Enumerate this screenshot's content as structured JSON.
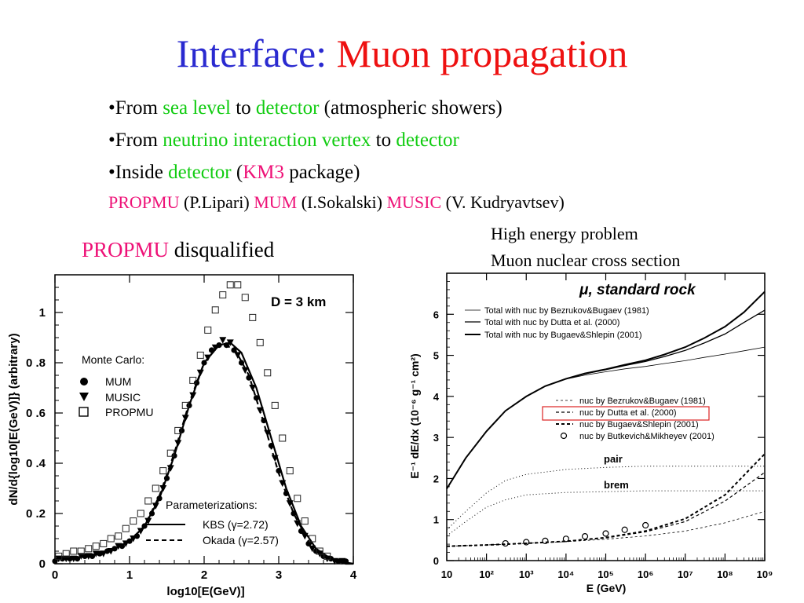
{
  "slide": {
    "title_part1": "Interface:",
    "title_part2": "Muon propagation",
    "bullets": [
      {
        "a": "•From ",
        "b": "sea level",
        "c": " to ",
        "d": "detector",
        "e": " (atmospheric showers)"
      },
      {
        "a": "•From ",
        "b": "neutrino interaction vertex",
        "c": " to ",
        "d": "detector",
        "e": ""
      },
      {
        "a": "•Inside ",
        "b": "detector",
        "c": " (",
        "d": "KM3",
        "e": " package)"
      }
    ],
    "credits": [
      {
        "code": "PROPMU",
        "who": " (P.Lipari) "
      },
      {
        "code": "MUM",
        "who": " (I.Sokalski) "
      },
      {
        "code": "MUSIC",
        "who": " (V. Kudryavtsev)"
      }
    ],
    "disqualified": {
      "code": "PROPMU",
      "text": " disqualified"
    },
    "notes": [
      "High energy problem",
      "Muon nuclear cross section"
    ],
    "colors": {
      "title_blue": "#2a2ad0",
      "red": "#ee1111",
      "green": "#11cc11",
      "magenta": "#ee1177",
      "highlight_box": "#dd2222"
    }
  },
  "chart_data": [
    {
      "type": "scatter",
      "annotation": "D = 3 km",
      "xlabel": "log10[E(GeV)]",
      "ylabel": "dN/d{log10[E(GeV)]} (arbitrary)",
      "xlim": [
        0,
        4
      ],
      "ylim": [
        0,
        1.15
      ],
      "x_ticks": [
        "0",
        "1",
        "2",
        "3",
        "4"
      ],
      "y_ticks": [
        "0",
        "0.2",
        "0.4",
        "0.6",
        "0.8",
        "1"
      ],
      "legend_mc_title": "Monte Carlo:",
      "legend_param_title": "Parameterizations:",
      "series": [
        {
          "name": "MUM",
          "marker": "filled-circle",
          "x": [
            0.0,
            0.1,
            0.2,
            0.3,
            0.4,
            0.5,
            0.6,
            0.7,
            0.8,
            0.9,
            1.0,
            1.1,
            1.2,
            1.3,
            1.4,
            1.5,
            1.6,
            1.7,
            1.8,
            1.9,
            2.0,
            2.1,
            2.2,
            2.3,
            2.4,
            2.5,
            2.6,
            2.7,
            2.8,
            2.9,
            3.0,
            3.1,
            3.2,
            3.3,
            3.4,
            3.5,
            3.6,
            3.7,
            3.8,
            3.9
          ],
          "y": [
            0.01,
            0.02,
            0.02,
            0.02,
            0.03,
            0.03,
            0.04,
            0.05,
            0.06,
            0.07,
            0.09,
            0.11,
            0.15,
            0.2,
            0.26,
            0.34,
            0.43,
            0.53,
            0.63,
            0.72,
            0.8,
            0.85,
            0.87,
            0.87,
            0.85,
            0.8,
            0.74,
            0.66,
            0.57,
            0.47,
            0.37,
            0.28,
            0.2,
            0.13,
            0.08,
            0.05,
            0.03,
            0.02,
            0.01,
            0.01
          ]
        },
        {
          "name": "MUSIC",
          "marker": "filled-triangle",
          "x": [
            0.05,
            0.15,
            0.25,
            0.35,
            0.45,
            0.55,
            0.65,
            0.75,
            0.85,
            0.95,
            1.05,
            1.15,
            1.25,
            1.35,
            1.45,
            1.55,
            1.65,
            1.75,
            1.85,
            1.95,
            2.05,
            2.15,
            2.25,
            2.35,
            2.45,
            2.55,
            2.65,
            2.75,
            2.85,
            2.95,
            3.05,
            3.15,
            3.25,
            3.35,
            3.45,
            3.55,
            3.65,
            3.75,
            3.85
          ],
          "y": [
            0.02,
            0.02,
            0.02,
            0.03,
            0.03,
            0.04,
            0.04,
            0.05,
            0.07,
            0.08,
            0.1,
            0.13,
            0.17,
            0.23,
            0.3,
            0.38,
            0.48,
            0.58,
            0.67,
            0.76,
            0.82,
            0.86,
            0.89,
            0.88,
            0.83,
            0.77,
            0.7,
            0.61,
            0.52,
            0.42,
            0.32,
            0.24,
            0.16,
            0.11,
            0.06,
            0.04,
            0.02,
            0.01,
            0.01
          ]
        },
        {
          "name": "PROPMU",
          "marker": "open-square",
          "x": [
            0.05,
            0.15,
            0.25,
            0.35,
            0.45,
            0.55,
            0.65,
            0.75,
            0.85,
            0.95,
            1.05,
            1.15,
            1.25,
            1.35,
            1.45,
            1.55,
            1.65,
            1.75,
            1.85,
            1.95,
            2.05,
            2.15,
            2.25,
            2.35,
            2.45,
            2.55,
            2.65,
            2.75,
            2.85,
            2.95,
            3.05,
            3.15,
            3.25,
            3.35,
            3.45,
            3.55,
            3.65
          ],
          "y": [
            0.03,
            0.04,
            0.05,
            0.05,
            0.06,
            0.07,
            0.08,
            0.1,
            0.11,
            0.14,
            0.17,
            0.2,
            0.25,
            0.3,
            0.37,
            0.44,
            0.53,
            0.63,
            0.73,
            0.83,
            0.93,
            1.01,
            1.07,
            1.11,
            1.11,
            1.06,
            0.98,
            0.88,
            0.76,
            0.63,
            0.5,
            0.37,
            0.26,
            0.17,
            0.1,
            0.05,
            0.03
          ]
        },
        {
          "name": "KBS (γ=2.72)",
          "style": "solid",
          "x": [
            0.0,
            0.2,
            0.4,
            0.6,
            0.8,
            1.0,
            1.2,
            1.4,
            1.6,
            1.8,
            2.0,
            2.2,
            2.35,
            2.5,
            2.7,
            2.9,
            3.1,
            3.3,
            3.5,
            3.7,
            3.9,
            4.0
          ],
          "y": [
            0.02,
            0.02,
            0.03,
            0.04,
            0.06,
            0.09,
            0.15,
            0.26,
            0.43,
            0.63,
            0.8,
            0.87,
            0.88,
            0.84,
            0.7,
            0.5,
            0.3,
            0.15,
            0.06,
            0.02,
            0.0,
            0.0
          ]
        },
        {
          "name": "Okada (γ=2.57)",
          "style": "dashed",
          "x": [
            0.0,
            0.2,
            0.4,
            0.6,
            0.8,
            1.0,
            1.2,
            1.4,
            1.6,
            1.8,
            2.0,
            2.2,
            2.4,
            2.6,
            2.8,
            3.0,
            3.2,
            3.4,
            3.6,
            3.8,
            4.0
          ],
          "y": [
            0.02,
            0.02,
            0.03,
            0.04,
            0.06,
            0.09,
            0.15,
            0.27,
            0.44,
            0.64,
            0.8,
            0.87,
            0.86,
            0.75,
            0.56,
            0.36,
            0.2,
            0.09,
            0.03,
            0.01,
            0.0
          ]
        }
      ]
    },
    {
      "type": "line",
      "title": "μ, standard rock",
      "xlabel": "E (GeV)",
      "ylabel": "E⁻¹ dE/dx (10⁻⁶ g⁻¹ cm²)",
      "xscale": "log",
      "xlim": [
        10,
        1000000000
      ],
      "ylim": [
        0,
        7
      ],
      "x_ticks": [
        "10",
        "10²",
        "10³",
        "10⁴",
        "10⁵",
        "10⁶",
        "10⁷",
        "10⁸",
        "10⁹"
      ],
      "y_ticks": [
        "0",
        "1",
        "2",
        "3",
        "4",
        "5",
        "6"
      ],
      "series": [
        {
          "name": "Total with nuc by Bezrukov&Bugaev (1981)",
          "style": "solid-thin",
          "x": [
            10,
            30,
            100,
            300,
            1000,
            3000,
            10000,
            30000,
            100000,
            300000,
            1000000,
            3000000,
            10000000,
            30000000,
            100000000,
            300000000,
            1000000000
          ],
          "y": [
            1.75,
            2.5,
            3.15,
            3.65,
            4.0,
            4.25,
            4.42,
            4.52,
            4.6,
            4.67,
            4.73,
            4.8,
            4.87,
            4.95,
            5.03,
            5.11,
            5.2
          ]
        },
        {
          "name": "Total with nuc by Dutta et al. (2000)",
          "style": "solid",
          "x": [
            10,
            30,
            100,
            300,
            1000,
            3000,
            10000,
            30000,
            100000,
            300000,
            1000000,
            3000000,
            10000000,
            30000000,
            100000000,
            300000000,
            1000000000
          ],
          "y": [
            1.75,
            2.5,
            3.15,
            3.65,
            4.0,
            4.25,
            4.43,
            4.55,
            4.65,
            4.75,
            4.85,
            4.97,
            5.12,
            5.3,
            5.52,
            5.8,
            6.1
          ]
        },
        {
          "name": "Total with nuc by Bugaev&Shlepin (2001)",
          "style": "solid-thick",
          "x": [
            10,
            30,
            100,
            300,
            1000,
            3000,
            10000,
            30000,
            100000,
            300000,
            1000000,
            3000000,
            10000000,
            30000000,
            100000000,
            300000000,
            1000000000
          ],
          "y": [
            1.75,
            2.5,
            3.15,
            3.65,
            4.0,
            4.25,
            4.43,
            4.56,
            4.66,
            4.77,
            4.88,
            5.02,
            5.2,
            5.42,
            5.7,
            6.05,
            6.55
          ]
        },
        {
          "name": "nuc by Bezrukov&Bugaev (1981)",
          "style": "dashed-thin",
          "x": [
            10,
            100,
            1000,
            10000,
            100000,
            1000000,
            10000000,
            100000000,
            1000000000
          ],
          "y": [
            0.35,
            0.38,
            0.42,
            0.46,
            0.52,
            0.6,
            0.72,
            0.92,
            1.2
          ]
        },
        {
          "name": "nuc by Dutta et al. (2000)",
          "style": "dashed",
          "x": [
            10,
            100,
            1000,
            10000,
            100000,
            1000000,
            10000000,
            100000000,
            1000000000
          ],
          "y": [
            0.35,
            0.38,
            0.42,
            0.47,
            0.55,
            0.7,
            0.95,
            1.45,
            2.15
          ]
        },
        {
          "name": "nuc by Bugaev&Shlepin (2001)",
          "style": "dashed-thick",
          "x": [
            10,
            100,
            1000,
            10000,
            100000,
            1000000,
            10000000,
            100000000,
            1000000000
          ],
          "y": [
            0.35,
            0.38,
            0.42,
            0.47,
            0.56,
            0.72,
            1.02,
            1.6,
            2.6
          ]
        },
        {
          "name": "nuc by Butkevich&Mikheyev (2001)",
          "style": "open-circle",
          "x": [
            300,
            1000,
            3000,
            10000,
            30000,
            100000,
            300000,
            1000000
          ],
          "y": [
            0.42,
            0.45,
            0.48,
            0.53,
            0.59,
            0.66,
            0.75,
            0.86
          ]
        },
        {
          "name": "pair",
          "style": "dotted",
          "x": [
            10,
            30,
            100,
            300,
            1000,
            10000,
            100000,
            1000000,
            10000000,
            100000000,
            1000000000
          ],
          "y": [
            0.75,
            1.2,
            1.65,
            1.95,
            2.1,
            2.22,
            2.27,
            2.3,
            2.3,
            2.3,
            2.3
          ]
        },
        {
          "name": "brem",
          "style": "dotted",
          "x": [
            10,
            30,
            100,
            300,
            1000,
            10000,
            100000,
            1000000,
            10000000,
            100000000,
            1000000000
          ],
          "y": [
            0.6,
            0.95,
            1.3,
            1.48,
            1.6,
            1.66,
            1.68,
            1.7,
            1.7,
            1.7,
            1.7
          ]
        }
      ]
    }
  ]
}
